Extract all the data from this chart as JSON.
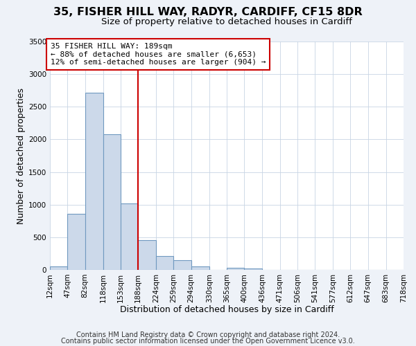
{
  "title": "35, FISHER HILL WAY, RADYR, CARDIFF, CF15 8DR",
  "subtitle": "Size of property relative to detached houses in Cardiff",
  "xlabel": "Distribution of detached houses by size in Cardiff",
  "ylabel": "Number of detached properties",
  "footnote1": "Contains HM Land Registry data © Crown copyright and database right 2024.",
  "footnote2": "Contains public sector information licensed under the Open Government Licence v3.0.",
  "bin_edges": [
    12,
    47,
    82,
    118,
    153,
    188,
    224,
    259,
    294,
    330,
    365,
    400,
    436,
    471,
    506,
    541,
    577,
    612,
    647,
    683,
    718
  ],
  "bar_heights": [
    55,
    855,
    2720,
    2075,
    1020,
    460,
    210,
    150,
    55,
    0,
    30,
    20,
    0,
    0,
    0,
    0,
    0,
    0,
    0,
    0
  ],
  "bar_face_color": "#ccd9ea",
  "bar_edge_color": "#7099c0",
  "tick_labels": [
    "12sqm",
    "47sqm",
    "82sqm",
    "118sqm",
    "153sqm",
    "188sqm",
    "224sqm",
    "259sqm",
    "294sqm",
    "330sqm",
    "365sqm",
    "400sqm",
    "436sqm",
    "471sqm",
    "506sqm",
    "541sqm",
    "577sqm",
    "612sqm",
    "647sqm",
    "683sqm",
    "718sqm"
  ],
  "vline_x": 188,
  "vline_color": "#cc0000",
  "box_text_line1": "35 FISHER HILL WAY: 189sqm",
  "box_text_line2": "← 88% of detached houses are smaller (6,653)",
  "box_text_line3": "12% of semi-detached houses are larger (904) →",
  "box_color": "#cc0000",
  "ylim": [
    0,
    3500
  ],
  "yticks": [
    0,
    500,
    1000,
    1500,
    2000,
    2500,
    3000,
    3500
  ],
  "bg_color": "#eef2f8",
  "plot_bg_color": "#ffffff",
  "grid_color": "#c8d4e4",
  "title_fontsize": 11.5,
  "subtitle_fontsize": 9.5,
  "axis_label_fontsize": 9,
  "tick_fontsize": 7.5,
  "footnote_fontsize": 7
}
